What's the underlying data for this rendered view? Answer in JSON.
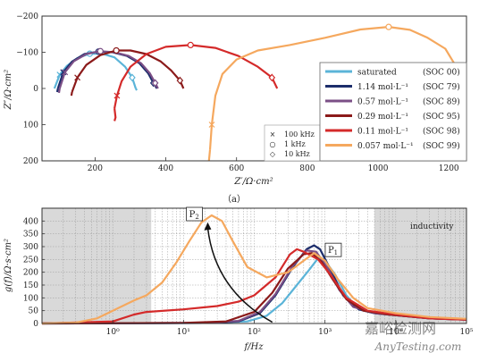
{
  "chart_data": [
    {
      "type": "line",
      "caption": "（a）",
      "xlabel": "Z′/Ω·cm²",
      "ylabel": "Z″/Ω·cm²",
      "xlim": [
        50,
        1250
      ],
      "ylim": [
        -200,
        200
      ],
      "y_inverted": true,
      "xticks": [
        "200",
        "400",
        "600",
        "800",
        "1000",
        "1200"
      ],
      "yticks": [
        "−200",
        "−100",
        "0",
        "100",
        "200"
      ],
      "grid": false,
      "legend_position": "bottom-right",
      "marker_legend": [
        {
          "marker": "×",
          "label": "100 kHz"
        },
        {
          "marker": "○",
          "label": "1 kHz"
        },
        {
          "marker": "◇",
          "label": "10 kHz"
        }
      ],
      "series": [
        {
          "name": "saturated",
          "soc": "(SOC 00)",
          "color": "#5bb4d8",
          "points": [
            [
              85,
              0
            ],
            [
              100,
              -38
            ],
            [
              120,
              -62
            ],
            [
              150,
              -84
            ],
            [
              185,
              -96
            ],
            [
              220,
              -96
            ],
            [
              255,
              -86
            ],
            [
              285,
              -60
            ],
            [
              305,
              -30
            ],
            [
              315,
              0
            ]
          ],
          "tail": [
            [
              315,
              0
            ],
            [
              318,
              5
            ]
          ]
        },
        {
          "name": "1.14  mol·L⁻¹",
          "soc": "(SOC 79)",
          "color": "#1c2d6b",
          "points": [
            [
              95,
              0
            ],
            [
              110,
              -45
            ],
            [
              135,
              -74
            ],
            [
              170,
              -95
            ],
            [
              210,
              -102
            ],
            [
              250,
              -100
            ],
            [
              290,
              -90
            ],
            [
              325,
              -70
            ],
            [
              350,
              -42
            ],
            [
              365,
              -15
            ],
            [
              375,
              0
            ]
          ],
          "tail": [
            [
              95,
              0
            ],
            [
              93,
              10
            ]
          ]
        },
        {
          "name": "0.57  mol·L⁻¹",
          "soc": "(SOC 89)",
          "color": "#7b4f86",
          "points": [
            [
              100,
              0
            ],
            [
              115,
              -45
            ],
            [
              140,
              -75
            ],
            [
              175,
              -95
            ],
            [
              215,
              -103
            ],
            [
              255,
              -100
            ],
            [
              295,
              -90
            ],
            [
              330,
              -70
            ],
            [
              355,
              -42
            ],
            [
              370,
              -15
            ],
            [
              378,
              0
            ]
          ],
          "tail": [
            [
              100,
              0
            ],
            [
              98,
              12
            ]
          ]
        },
        {
          "name": "0.29  mol·L⁻¹",
          "soc": "(SOC 95)",
          "color": "#8b1a1a",
          "points": [
            [
              135,
              10
            ],
            [
              150,
              -30
            ],
            [
              175,
              -65
            ],
            [
              215,
              -92
            ],
            [
              260,
              -105
            ],
            [
              300,
              -105
            ],
            [
              345,
              -95
            ],
            [
              385,
              -75
            ],
            [
              415,
              -50
            ],
            [
              440,
              -22
            ],
            [
              450,
              0
            ]
          ],
          "tail": [
            [
              135,
              10
            ],
            [
              133,
              20
            ]
          ]
        },
        {
          "name": "0.11  mol·L⁻¹",
          "soc": "(SOC 98)",
          "color": "#d42a2a",
          "points": [
            [
              255,
              55
            ],
            [
              262,
              20
            ],
            [
              275,
              -20
            ],
            [
              300,
              -60
            ],
            [
              345,
              -95
            ],
            [
              400,
              -115
            ],
            [
              470,
              -120
            ],
            [
              540,
              -112
            ],
            [
              605,
              -90
            ],
            [
              660,
              -60
            ],
            [
              700,
              -30
            ],
            [
              715,
              0
            ]
          ],
          "tail": [
            [
              255,
              55
            ],
            [
              258,
              80
            ],
            [
              255,
              90
            ]
          ]
        },
        {
          "name": "0.057 mol·L⁻¹",
          "soc": "(SOC 99)",
          "color": "#f5a85e",
          "points": [
            [
              525,
              170
            ],
            [
              530,
              100
            ],
            [
              540,
              20
            ],
            [
              560,
              -40
            ],
            [
              600,
              -80
            ],
            [
              660,
              -105
            ],
            [
              750,
              -120
            ],
            [
              850,
              -140
            ],
            [
              950,
              -163
            ],
            [
              1030,
              -170
            ],
            [
              1090,
              -162
            ],
            [
              1140,
              -140
            ],
            [
              1190,
              -110
            ],
            [
              1215,
              -70
            ],
            [
              1225,
              -40
            ],
            [
              1230,
              -10
            ]
          ],
          "tail": [
            [
              525,
              170
            ],
            [
              522,
              200
            ]
          ]
        }
      ]
    },
    {
      "type": "line",
      "xlabel": "f/Hz",
      "ylabel": "g(f)/Ω·s·cm²",
      "xscale": "log",
      "xlim": [
        0.1,
        100000
      ],
      "ylim": [
        0,
        450
      ],
      "xticks": [
        "10⁰",
        "10¹",
        "10²",
        "10³",
        "10⁴",
        "10⁵"
      ],
      "yticks": [
        "0",
        "50",
        "100",
        "150",
        "200",
        "250",
        "300",
        "350",
        "400"
      ],
      "shaded_regions": [
        [
          0.1,
          3.5
        ],
        [
          5000,
          100000
        ]
      ],
      "annotations": [
        {
          "text": "inductivity",
          "x": 16000,
          "y": 370
        },
        {
          "text": "P",
          "sub": "2",
          "x": 12,
          "y": 415
        },
        {
          "text": "P",
          "sub": "1",
          "x": 1100,
          "y": 275
        }
      ],
      "arrow": {
        "from": [
          180,
          5
        ],
        "to": [
          22,
          395
        ]
      },
      "series": [
        {
          "name": "saturated",
          "color": "#5bb4d8",
          "points": [
            [
              0.1,
              0
            ],
            [
              20,
              2
            ],
            [
              80,
              8
            ],
            [
              150,
              30
            ],
            [
              250,
              80
            ],
            [
              400,
              150
            ],
            [
              600,
              210
            ],
            [
              800,
              255
            ],
            [
              1000,
              245
            ],
            [
              1400,
              190
            ],
            [
              2000,
              110
            ],
            [
              3000,
              55
            ],
            [
              5000,
              40
            ],
            [
              10000,
              32
            ],
            [
              30000,
              20
            ],
            [
              100000,
              15
            ]
          ]
        },
        {
          "name": "1.14  mol·L⁻¹",
          "color": "#1c2d6b",
          "points": [
            [
              0.1,
              0
            ],
            [
              20,
              2
            ],
            [
              60,
              8
            ],
            [
              120,
              40
            ],
            [
              200,
              110
            ],
            [
              350,
              220
            ],
            [
              550,
              290
            ],
            [
              700,
              305
            ],
            [
              850,
              290
            ],
            [
              1200,
              210
            ],
            [
              1800,
              110
            ],
            [
              3000,
              55
            ],
            [
              5000,
              40
            ],
            [
              10000,
              32
            ],
            [
              30000,
              20
            ],
            [
              100000,
              15
            ]
          ]
        },
        {
          "name": "0.57  mol·L⁻¹",
          "color": "#7b4f86",
          "points": [
            [
              0.1,
              0
            ],
            [
              20,
              2
            ],
            [
              60,
              10
            ],
            [
              120,
              45
            ],
            [
              200,
              115
            ],
            [
              350,
              225
            ],
            [
              550,
              285
            ],
            [
              750,
              280
            ],
            [
              1100,
              215
            ],
            [
              1600,
              130
            ],
            [
              2500,
              65
            ],
            [
              5000,
              40
            ],
            [
              10000,
              32
            ],
            [
              30000,
              20
            ],
            [
              100000,
              15
            ]
          ]
        },
        {
          "name": "0.29  mol·L⁻¹",
          "color": "#8b1a1a",
          "points": [
            [
              0.1,
              0
            ],
            [
              10,
              2
            ],
            [
              40,
              8
            ],
            [
              100,
              45
            ],
            [
              180,
              120
            ],
            [
              300,
              215
            ],
            [
              500,
              270
            ],
            [
              650,
              275
            ],
            [
              900,
              240
            ],
            [
              1300,
              170
            ],
            [
              2000,
              95
            ],
            [
              3500,
              50
            ],
            [
              8000,
              35
            ],
            [
              30000,
              20
            ],
            [
              100000,
              15
            ]
          ]
        },
        {
          "name": "0.11  mol·L⁻¹",
          "color": "#d42a2a",
          "points": [
            [
              0.1,
              0
            ],
            [
              1,
              8
            ],
            [
              2,
              35
            ],
            [
              3,
              45
            ],
            [
              10,
              55
            ],
            [
              30,
              68
            ],
            [
              60,
              85
            ],
            [
              100,
              110
            ],
            [
              200,
              180
            ],
            [
              320,
              270
            ],
            [
              400,
              290
            ],
            [
              500,
              280
            ],
            [
              800,
              250
            ],
            [
              1200,
              190
            ],
            [
              2000,
              100
            ],
            [
              4000,
              50
            ],
            [
              10000,
              35
            ],
            [
              30000,
              20
            ],
            [
              100000,
              15
            ]
          ]
        },
        {
          "name": "0.057 mol·L⁻¹",
          "color": "#f5a85e",
          "points": [
            [
              0.1,
              0
            ],
            [
              0.3,
              3
            ],
            [
              0.6,
              20
            ],
            [
              1,
              50
            ],
            [
              2,
              90
            ],
            [
              3,
              110
            ],
            [
              5,
              160
            ],
            [
              8,
              240
            ],
            [
              12,
              320
            ],
            [
              18,
              395
            ],
            [
              25,
              422
            ],
            [
              35,
              400
            ],
            [
              50,
              320
            ],
            [
              80,
              220
            ],
            [
              150,
              180
            ],
            [
              300,
              200
            ],
            [
              500,
              245
            ],
            [
              700,
              275
            ],
            [
              1000,
              245
            ],
            [
              1500,
              175
            ],
            [
              2500,
              100
            ],
            [
              4000,
              60
            ],
            [
              10000,
              40
            ],
            [
              30000,
              25
            ],
            [
              100000,
              18
            ]
          ]
        }
      ]
    }
  ],
  "watermark": {
    "text_cn": "嘉峪检测网",
    "text_en": "AnyTesting.com"
  }
}
